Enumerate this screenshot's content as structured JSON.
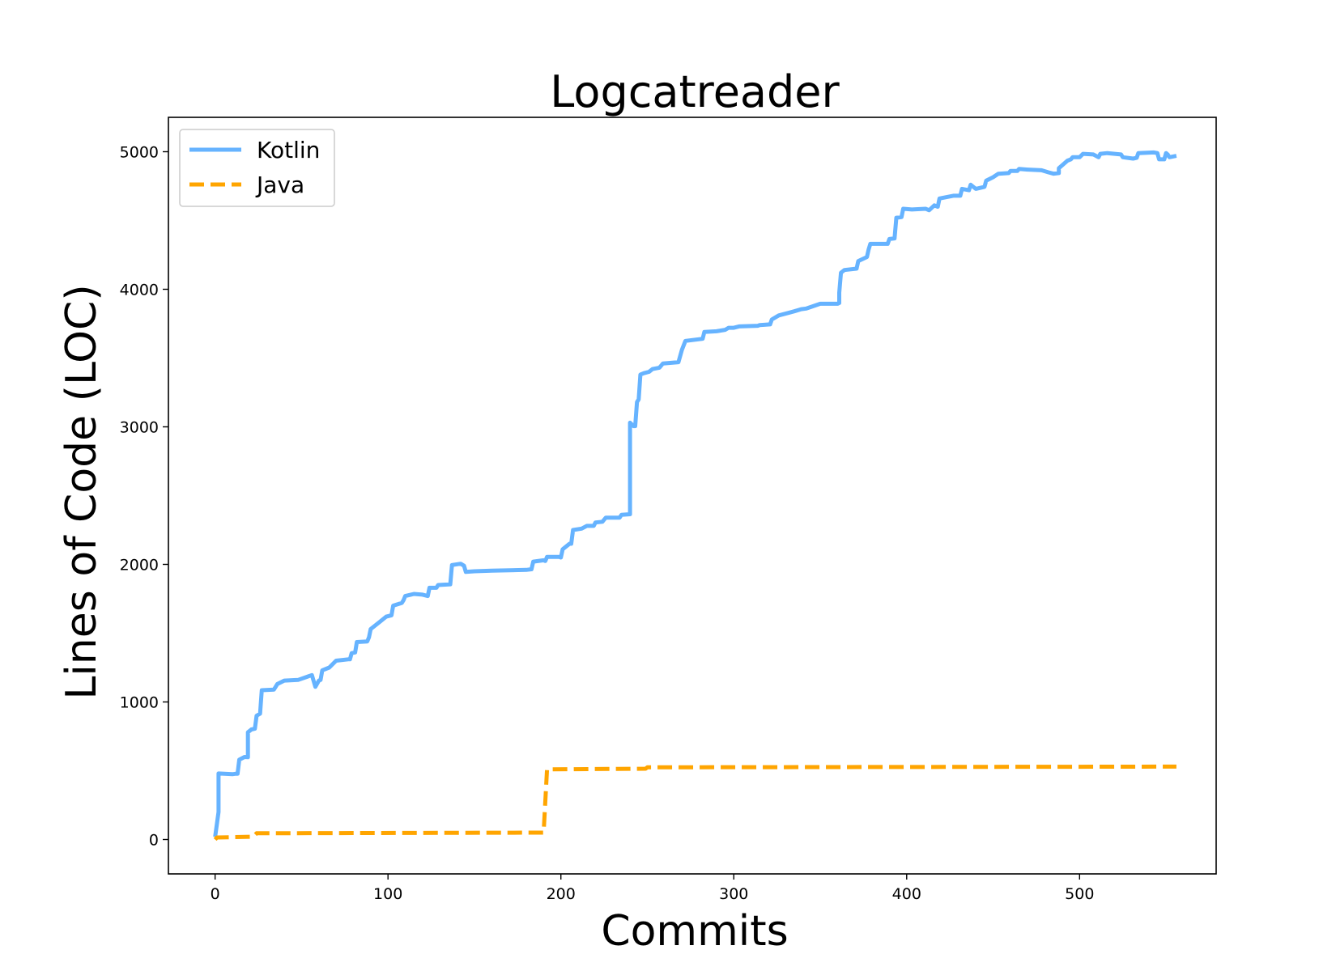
{
  "chart_data": {
    "type": "line",
    "title": "Logcatreader",
    "xlabel": "Commits",
    "ylabel": "Lines of Code (LOC)",
    "xlim": [
      -27,
      579
    ],
    "ylim": [
      -250,
      5250
    ],
    "xticks": [
      0,
      100,
      200,
      300,
      400,
      500
    ],
    "yticks": [
      0,
      1000,
      2000,
      3000,
      4000,
      5000
    ],
    "grid": false,
    "legend_position": "top-left",
    "series": [
      {
        "name": "Kotlin",
        "color": "#66b3ff",
        "style": "solid",
        "points": [
          [
            0,
            20
          ],
          [
            2,
            200
          ],
          [
            2,
            480
          ],
          [
            10,
            475
          ],
          [
            12,
            478
          ],
          [
            13,
            478
          ],
          [
            14,
            580
          ],
          [
            17,
            600
          ],
          [
            19,
            598
          ],
          [
            19,
            780
          ],
          [
            21,
            800
          ],
          [
            23,
            805
          ],
          [
            24,
            900
          ],
          [
            26,
            915
          ],
          [
            27,
            1085
          ],
          [
            34,
            1090
          ],
          [
            36,
            1130
          ],
          [
            40,
            1155
          ],
          [
            48,
            1160
          ],
          [
            56,
            1195
          ],
          [
            58,
            1110
          ],
          [
            60,
            1155
          ],
          [
            61,
            1160
          ],
          [
            62,
            1230
          ],
          [
            66,
            1250
          ],
          [
            70,
            1300
          ],
          [
            77,
            1310
          ],
          [
            78,
            1310
          ],
          [
            79,
            1355
          ],
          [
            81,
            1360
          ],
          [
            82,
            1435
          ],
          [
            88,
            1440
          ],
          [
            89,
            1470
          ],
          [
            90,
            1530
          ],
          [
            95,
            1580
          ],
          [
            99,
            1620
          ],
          [
            102,
            1630
          ],
          [
            103,
            1700
          ],
          [
            108,
            1720
          ],
          [
            109,
            1740
          ],
          [
            110,
            1770
          ],
          [
            115,
            1785
          ],
          [
            120,
            1780
          ],
          [
            123,
            1770
          ],
          [
            124,
            1830
          ],
          [
            128,
            1830
          ],
          [
            129,
            1850
          ],
          [
            136,
            1855
          ],
          [
            137,
            1995
          ],
          [
            142,
            2005
          ],
          [
            144,
            1990
          ],
          [
            145,
            1945
          ],
          [
            150,
            1950
          ],
          [
            160,
            1955
          ],
          [
            180,
            1960
          ],
          [
            183,
            1965
          ],
          [
            184,
            2020
          ],
          [
            190,
            2030
          ],
          [
            191,
            2025
          ],
          [
            192,
            2055
          ],
          [
            199,
            2055
          ],
          [
            200,
            2050
          ],
          [
            201,
            2110
          ],
          [
            205,
            2150
          ],
          [
            206,
            2150
          ],
          [
            207,
            2250
          ],
          [
            212,
            2260
          ],
          [
            215,
            2280
          ],
          [
            219,
            2280
          ],
          [
            220,
            2305
          ],
          [
            224,
            2310
          ],
          [
            226,
            2340
          ],
          [
            232,
            2340
          ],
          [
            234,
            2340
          ],
          [
            235,
            2360
          ],
          [
            240,
            2365
          ],
          [
            240,
            3030
          ],
          [
            242,
            3005
          ],
          [
            243,
            3005
          ],
          [
            244,
            3180
          ],
          [
            245,
            3200
          ],
          [
            246,
            3380
          ],
          [
            248,
            3390
          ],
          [
            251,
            3400
          ],
          [
            253,
            3420
          ],
          [
            257,
            3430
          ],
          [
            259,
            3460
          ],
          [
            268,
            3470
          ],
          [
            270,
            3560
          ],
          [
            272,
            3625
          ],
          [
            282,
            3640
          ],
          [
            283,
            3690
          ],
          [
            290,
            3695
          ],
          [
            295,
            3705
          ],
          [
            297,
            3720
          ],
          [
            300,
            3720
          ],
          [
            303,
            3730
          ],
          [
            314,
            3735
          ],
          [
            315,
            3740
          ],
          [
            321,
            3745
          ],
          [
            322,
            3780
          ],
          [
            326,
            3810
          ],
          [
            332,
            3830
          ],
          [
            335,
            3840
          ],
          [
            339,
            3855
          ],
          [
            342,
            3860
          ],
          [
            350,
            3895
          ],
          [
            360,
            3895
          ],
          [
            361,
            3900
          ],
          [
            361,
            3975
          ],
          [
            362,
            4120
          ],
          [
            364,
            4140
          ],
          [
            371,
            4150
          ],
          [
            372,
            4205
          ],
          [
            377,
            4235
          ],
          [
            378,
            4290
          ],
          [
            379,
            4330
          ],
          [
            389,
            4330
          ],
          [
            390,
            4365
          ],
          [
            393,
            4370
          ],
          [
            394,
            4520
          ],
          [
            397,
            4525
          ],
          [
            398,
            4585
          ],
          [
            403,
            4580
          ],
          [
            411,
            4585
          ],
          [
            413,
            4575
          ],
          [
            416,
            4610
          ],
          [
            418,
            4600
          ],
          [
            419,
            4660
          ],
          [
            427,
            4680
          ],
          [
            431,
            4680
          ],
          [
            432,
            4730
          ],
          [
            436,
            4720
          ],
          [
            437,
            4760
          ],
          [
            440,
            4730
          ],
          [
            445,
            4745
          ],
          [
            446,
            4790
          ],
          [
            450,
            4815
          ],
          [
            453,
            4840
          ],
          [
            459,
            4845
          ],
          [
            460,
            4860
          ],
          [
            464,
            4860
          ],
          [
            465,
            4875
          ],
          [
            470,
            4870
          ],
          [
            478,
            4865
          ],
          [
            482,
            4850
          ],
          [
            485,
            4840
          ],
          [
            488,
            4845
          ],
          [
            488,
            4880
          ],
          [
            493,
            4935
          ],
          [
            495,
            4945
          ],
          [
            496,
            4960
          ],
          [
            500,
            4960
          ],
          [
            502,
            4985
          ],
          [
            508,
            4980
          ],
          [
            511,
            4960
          ],
          [
            512,
            4985
          ],
          [
            516,
            4990
          ],
          [
            524,
            4980
          ],
          [
            525,
            4960
          ],
          [
            531,
            4950
          ],
          [
            533,
            4955
          ],
          [
            534,
            4990
          ],
          [
            543,
            4995
          ],
          [
            545,
            4990
          ],
          [
            546,
            4945
          ],
          [
            549,
            4945
          ],
          [
            550,
            4990
          ],
          [
            551,
            4980
          ],
          [
            552,
            4960
          ],
          [
            554,
            4965
          ],
          [
            556,
            4970
          ]
        ]
      },
      {
        "name": "Java",
        "color": "#ffa500",
        "style": "dashed",
        "points": [
          [
            0,
            0
          ],
          [
            1,
            15
          ],
          [
            22,
            20
          ],
          [
            24,
            45
          ],
          [
            190,
            50
          ],
          [
            192,
            510
          ],
          [
            249,
            515
          ],
          [
            250,
            525
          ],
          [
            556,
            530
          ]
        ]
      }
    ]
  }
}
